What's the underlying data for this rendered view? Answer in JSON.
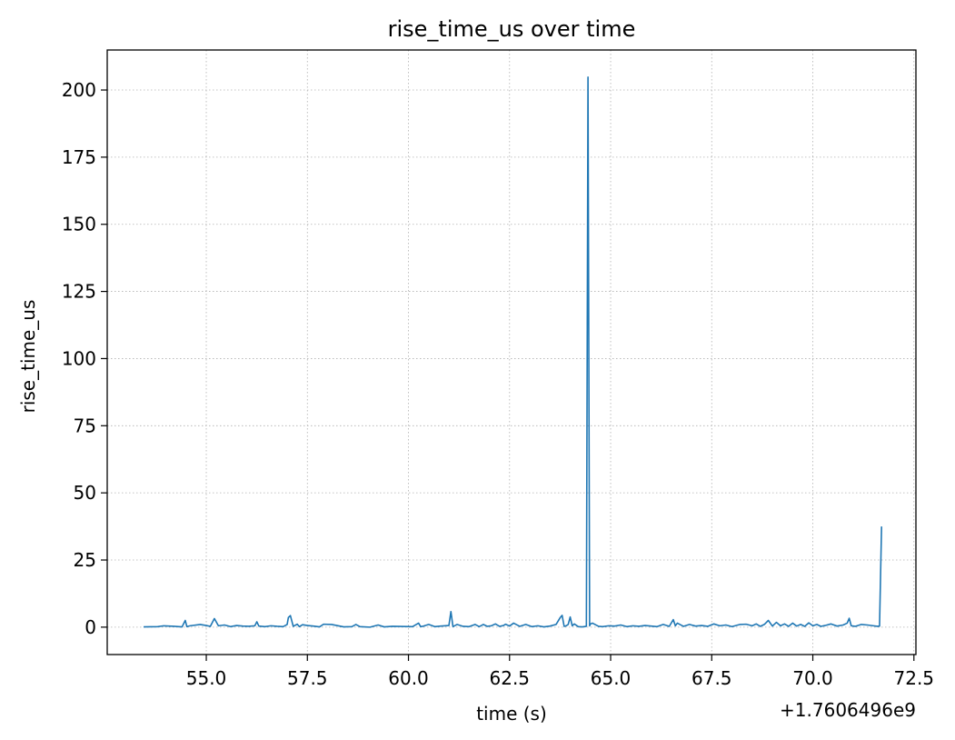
{
  "chart_data": {
    "type": "line",
    "title": "rise_time_us over time",
    "xlabel": "time (s)",
    "ylabel": "rise_time_us",
    "x_offset_label": "+1.7606496e9",
    "xlim": [
      52.55,
      72.55
    ],
    "ylim": [
      -10.2,
      214.9
    ],
    "xticks": [
      55.0,
      57.5,
      60.0,
      62.5,
      65.0,
      67.5,
      70.0,
      72.5
    ],
    "xtick_labels": [
      "55.0",
      "57.5",
      "60.0",
      "62.5",
      "65.0",
      "67.5",
      "70.0",
      "72.5"
    ],
    "yticks": [
      0,
      25,
      50,
      75,
      100,
      125,
      150,
      175,
      200
    ],
    "ytick_labels": [
      "0",
      "25",
      "50",
      "75",
      "100",
      "125",
      "150",
      "175",
      "200"
    ],
    "grid": true,
    "line_color": "#1f77b4",
    "series": [
      {
        "x": [
          53.45,
          53.8,
          53.95,
          54.2,
          54.4,
          54.48,
          54.52,
          54.6,
          54.85,
          55.0,
          55.1,
          55.2,
          55.3,
          55.45,
          55.6,
          55.75,
          55.9,
          56.05,
          56.2,
          56.25,
          56.3,
          56.45,
          56.6,
          56.75,
          56.9,
          57.0,
          57.03,
          57.08,
          57.15,
          57.25,
          57.3,
          57.38,
          57.5,
          57.65,
          57.8,
          57.9,
          58.1,
          58.4,
          58.6,
          58.7,
          58.8,
          59.05,
          59.25,
          59.4,
          59.6,
          60.1,
          60.25,
          60.3,
          60.35,
          60.5,
          60.65,
          60.8,
          61.0,
          61.05,
          61.1,
          61.2,
          61.35,
          61.5,
          61.65,
          61.75,
          61.85,
          61.95,
          62.05,
          62.15,
          62.25,
          62.35,
          62.4,
          62.5,
          62.6,
          62.75,
          62.9,
          63.05,
          63.2,
          63.35,
          63.5,
          63.65,
          63.75,
          63.8,
          63.85,
          63.9,
          63.95,
          64.0,
          64.05,
          64.1,
          64.2,
          64.3,
          64.4,
          64.44,
          64.48,
          64.5,
          64.55,
          64.7,
          64.8,
          64.95,
          65.1,
          65.25,
          65.4,
          65.55,
          65.7,
          65.85,
          66.0,
          66.15,
          66.3,
          66.45,
          66.55,
          66.6,
          66.65,
          66.8,
          66.95,
          67.1,
          67.25,
          67.4,
          67.55,
          67.7,
          67.85,
          68.0,
          68.2,
          68.35,
          68.5,
          68.6,
          68.7,
          68.8,
          68.9,
          69.0,
          69.1,
          69.2,
          69.3,
          69.4,
          69.5,
          69.6,
          69.7,
          69.8,
          69.9,
          70.0,
          70.1,
          70.2,
          70.3,
          70.45,
          70.6,
          70.75,
          70.85,
          70.9,
          70.95,
          71.05,
          71.2,
          71.35,
          71.5,
          71.6,
          71.65,
          71.7
        ],
        "y": [
          0.1,
          0.2,
          0.5,
          0.3,
          0.1,
          2.5,
          0.2,
          0.5,
          1.0,
          0.6,
          0.3,
          3.2,
          0.5,
          0.8,
          0.2,
          0.6,
          0.4,
          0.3,
          0.5,
          2.0,
          0.4,
          0.2,
          0.5,
          0.3,
          0.2,
          1.0,
          3.6,
          4.3,
          0.3,
          1.1,
          0.2,
          0.9,
          0.6,
          0.4,
          0.1,
          1.1,
          1.0,
          0.1,
          0.2,
          1.0,
          0.2,
          0.0,
          0.8,
          0.1,
          0.3,
          0.2,
          1.5,
          0.2,
          0.3,
          1.0,
          0.2,
          0.4,
          0.6,
          5.8,
          0.2,
          1.0,
          0.3,
          0.2,
          1.0,
          0.2,
          1.0,
          0.3,
          0.5,
          1.2,
          0.3,
          0.6,
          1.1,
          0.4,
          1.5,
          0.3,
          1.0,
          0.2,
          0.5,
          0.1,
          0.4,
          1.0,
          3.5,
          4.4,
          0.3,
          0.5,
          1.0,
          3.8,
          0.5,
          1.2,
          0.2,
          0.1,
          0.3,
          204.8,
          0.5,
          1.2,
          1.5,
          0.3,
          0.2,
          0.5,
          0.4,
          0.8,
          0.2,
          0.5,
          0.3,
          0.6,
          0.4,
          0.2,
          1.0,
          0.3,
          2.8,
          0.5,
          1.5,
          0.3,
          1.0,
          0.4,
          0.6,
          0.3,
          1.2,
          0.5,
          0.8,
          0.2,
          1.0,
          1.1,
          0.5,
          1.2,
          0.3,
          1.0,
          2.5,
          0.4,
          1.8,
          0.5,
          1.2,
          0.3,
          1.5,
          0.4,
          1.0,
          0.3,
          1.6,
          0.5,
          1.0,
          0.3,
          0.6,
          1.2,
          0.4,
          0.8,
          1.5,
          3.3,
          0.5,
          0.3,
          1.0,
          0.8,
          0.5,
          0.3,
          0.4,
          37.5
        ]
      }
    ]
  }
}
